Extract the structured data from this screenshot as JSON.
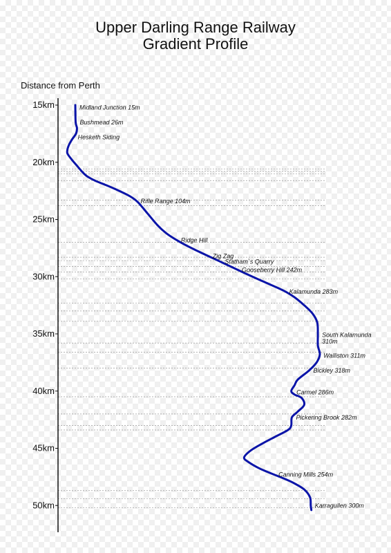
{
  "title_line1": "Upper Darling Range Railway",
  "title_line2": "Gradient Profile",
  "axis_label": "Distance from Perth",
  "chart_data": {
    "type": "line",
    "title": "Upper Darling Range Railway Gradient Profile",
    "ylabel": "Distance from Perth",
    "ylim": [
      15,
      50.5
    ],
    "y_ticks": [
      {
        "value": 15,
        "label": "15km"
      },
      {
        "value": 20,
        "label": "20km"
      },
      {
        "value": 25,
        "label": "25km"
      },
      {
        "value": 30,
        "label": "30km"
      },
      {
        "value": 35,
        "label": "35km"
      },
      {
        "value": 40,
        "label": "40km"
      },
      {
        "value": 45,
        "label": "45km"
      },
      {
        "value": 50,
        "label": "50km"
      }
    ],
    "line_color": "#0a14a8",
    "grid_color": "#999999",
    "profile": [
      {
        "km": 15.0,
        "elev": 15
      },
      {
        "km": 16.5,
        "elev": 16
      },
      {
        "km": 17.0,
        "elev": 20
      },
      {
        "km": 17.5,
        "elev": 17
      },
      {
        "km": 18.0,
        "elev": 5
      },
      {
        "km": 18.5,
        "elev": -5
      },
      {
        "km": 19.0,
        "elev": -10
      },
      {
        "km": 19.3,
        "elev": -8
      },
      {
        "km": 19.8,
        "elev": 5
      },
      {
        "km": 20.3,
        "elev": 20
      },
      {
        "km": 20.8,
        "elev": 35
      },
      {
        "km": 21.2,
        "elev": 50
      },
      {
        "km": 21.6,
        "elev": 75
      },
      {
        "km": 22.0,
        "elev": 110
      },
      {
        "km": 22.5,
        "elev": 150
      },
      {
        "km": 23.0,
        "elev": 185
      },
      {
        "km": 23.5,
        "elev": 208
      },
      {
        "km": 24.5,
        "elev": 238
      },
      {
        "km": 25.5,
        "elev": 268
      },
      {
        "km": 26.2,
        "elev": 295
      },
      {
        "km": 26.9,
        "elev": 333
      },
      {
        "km": 27.6,
        "elev": 380
      },
      {
        "km": 28.4,
        "elev": 440
      },
      {
        "km": 29.2,
        "elev": 500
      },
      {
        "km": 29.8,
        "elev": 545
      },
      {
        "km": 30.5,
        "elev": 600
      },
      {
        "km": 31.2,
        "elev": 655
      },
      {
        "km": 31.8,
        "elev": 690
      },
      {
        "km": 32.5,
        "elev": 720
      },
      {
        "km": 33.2,
        "elev": 745
      },
      {
        "km": 34.0,
        "elev": 760
      },
      {
        "km": 35.0,
        "elev": 762
      },
      {
        "km": 36.0,
        "elev": 762
      },
      {
        "km": 36.8,
        "elev": 768
      },
      {
        "km": 37.5,
        "elev": 758
      },
      {
        "km": 38.2,
        "elev": 735
      },
      {
        "km": 39.0,
        "elev": 700
      },
      {
        "km": 39.5,
        "elev": 690
      },
      {
        "km": 40.0,
        "elev": 680
      },
      {
        "km": 40.3,
        "elev": 690
      },
      {
        "km": 40.6,
        "elev": 712
      },
      {
        "km": 41.2,
        "elev": 720
      },
      {
        "km": 41.8,
        "elev": 700
      },
      {
        "km": 42.3,
        "elev": 682
      },
      {
        "km": 43.0,
        "elev": 680
      },
      {
        "km": 43.4,
        "elev": 670
      },
      {
        "km": 44.0,
        "elev": 630
      },
      {
        "km": 44.6,
        "elev": 590
      },
      {
        "km": 45.2,
        "elev": 555
      },
      {
        "km": 45.8,
        "elev": 535
      },
      {
        "km": 46.2,
        "elev": 548
      },
      {
        "km": 46.8,
        "elev": 585
      },
      {
        "km": 47.5,
        "elev": 645
      },
      {
        "km": 48.0,
        "elev": 685
      },
      {
        "km": 48.6,
        "elev": 720
      },
      {
        "km": 49.3,
        "elev": 738
      },
      {
        "km": 50.0,
        "elev": 740
      },
      {
        "km": 50.4,
        "elev": 742
      }
    ],
    "stations": [
      {
        "label": "Midland Junction 15m",
        "km": 15.2
      },
      {
        "label": "Bushmead 26m",
        "km": 16.5
      },
      {
        "label": "Hesketh Siding",
        "km": 17.8
      },
      {
        "label": "Rifle Range 104m",
        "km": 23.4
      },
      {
        "label": "Ridge Hill",
        "km": 26.8
      },
      {
        "label": "Zig Zag",
        "km": 28.2
      },
      {
        "label": "Statham`s Quarry",
        "km": 28.7
      },
      {
        "label": "Gooseberry Hill 242m",
        "km": 29.4
      },
      {
        "label": "Kalamunda 283m",
        "km": 31.3
      },
      {
        "label": "South Kalamunda",
        "km": 35.1
      },
      {
        "label": "310m",
        "km": 35.65
      },
      {
        "label": "Walliston 311m",
        "km": 36.9
      },
      {
        "label": "Bickley 318m",
        "km": 38.2
      },
      {
        "label": "Carmel 286m",
        "km": 40.1
      },
      {
        "label": "Pickering Brook 282m",
        "km": 42.3
      },
      {
        "label": "Canning Mills 254m",
        "km": 47.3
      },
      {
        "label": "Karragullen 300m",
        "km": 50.0
      }
    ],
    "grid_lines_km": [
      20.6,
      20.8,
      21.0,
      21.6,
      23.3,
      23.8,
      27.0,
      28.3,
      28.6,
      29.1,
      29.6,
      30.2,
      32.3,
      33.0,
      33.9,
      35.8,
      36.6,
      38.0,
      40.5,
      42.0,
      43.0,
      43.4,
      48.7,
      49.4,
      50.2
    ]
  }
}
